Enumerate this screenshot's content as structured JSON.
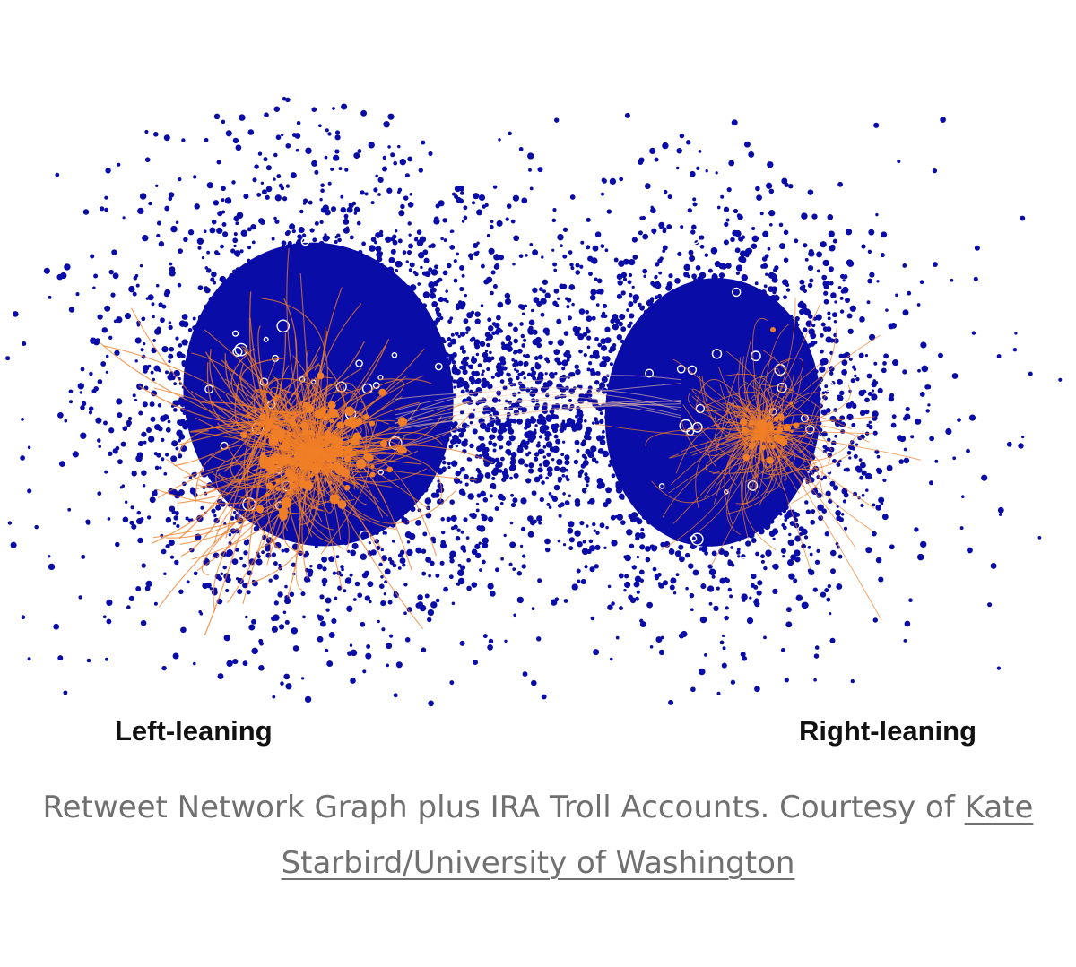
{
  "figure": {
    "left_label": "Left-leaning",
    "right_label": "Right-leaning",
    "colors": {
      "nodes": "#0a0ca8",
      "troll_edges": "#f07e26",
      "background": "#ffffff"
    }
  },
  "caption": {
    "text": "Retweet Network Graph plus IRA Troll Accounts. Courtesy of ",
    "link_text": "Kate Starbird/University of Washington"
  }
}
